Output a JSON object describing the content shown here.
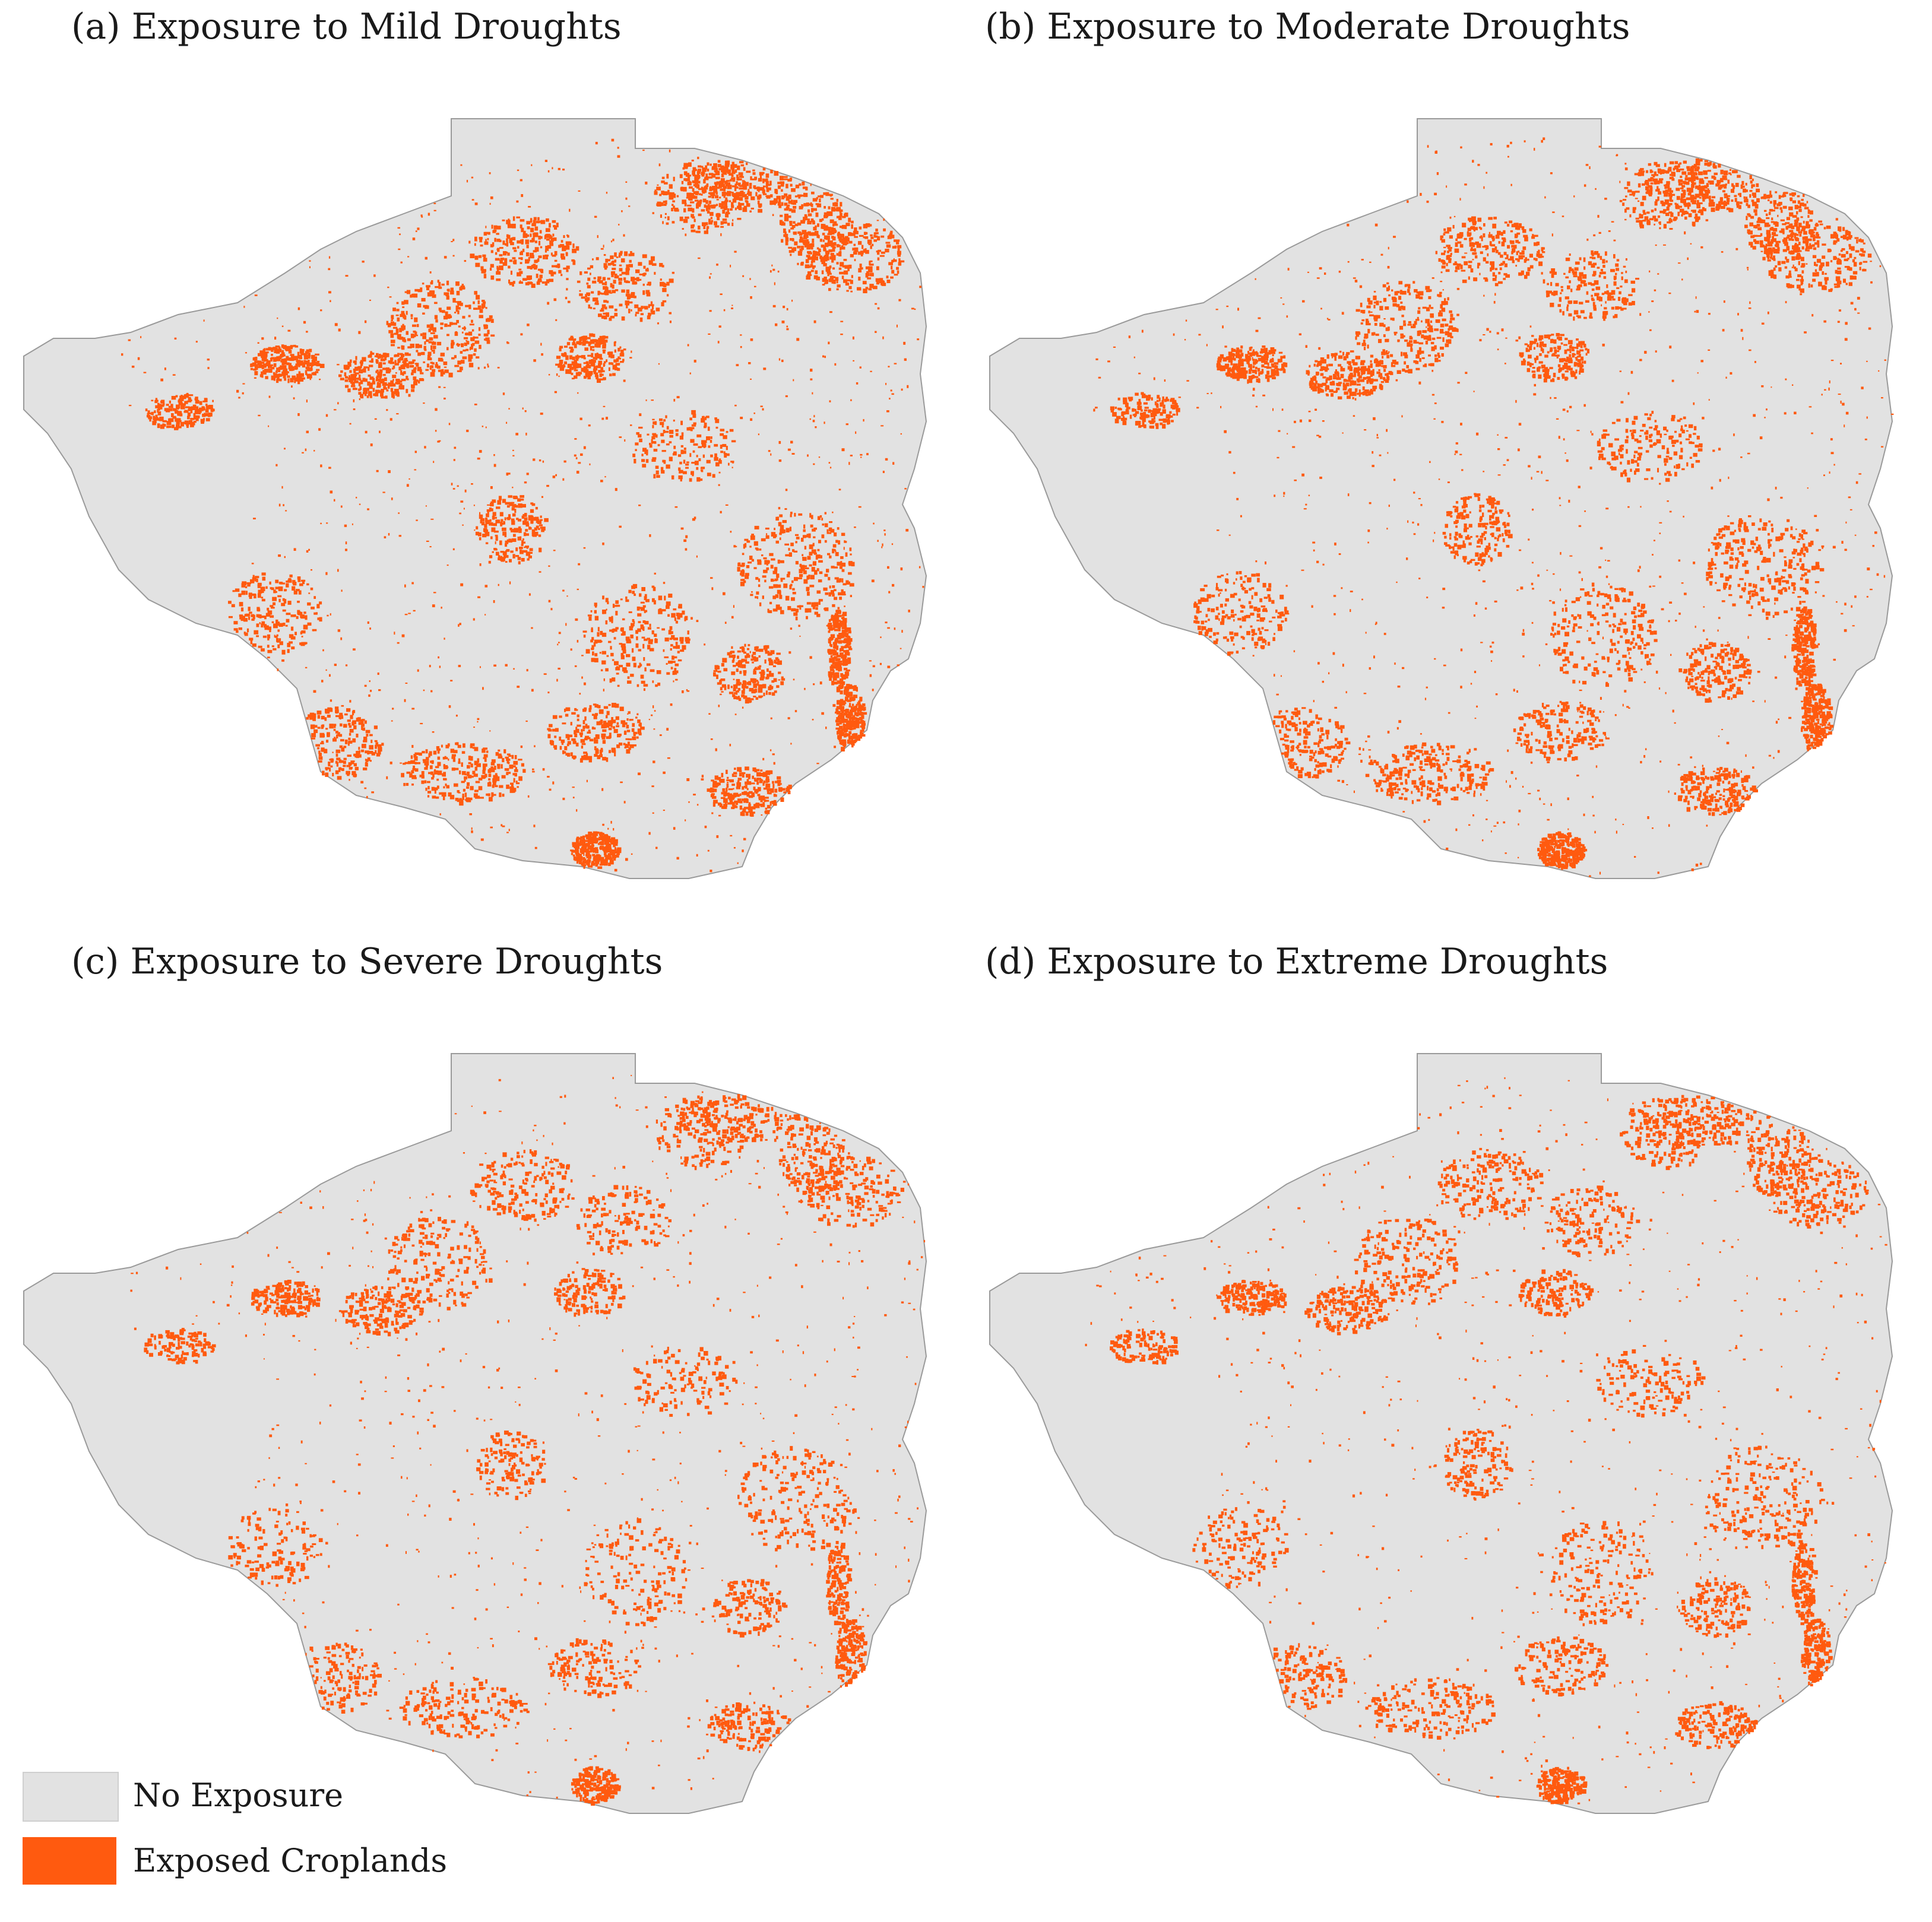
{
  "colors": {
    "no_exposure": "#e2e2e2",
    "exposed": "#ff5a0f",
    "border": "#9a9a9a"
  },
  "panels": [
    {
      "id": "a",
      "title": "(a) Exposure to Mild Droughts"
    },
    {
      "id": "b",
      "title": "(b) Exposure to Moderate Droughts"
    },
    {
      "id": "c",
      "title": "(c) Exposure to Severe Droughts"
    },
    {
      "id": "d",
      "title": "(d) Exposure to Extreme Droughts"
    }
  ],
  "legend": [
    {
      "label": "No Exposure",
      "color": "#e2e2e2"
    },
    {
      "label": "Exposed Croplands",
      "color": "#ff5a0f"
    }
  ]
}
